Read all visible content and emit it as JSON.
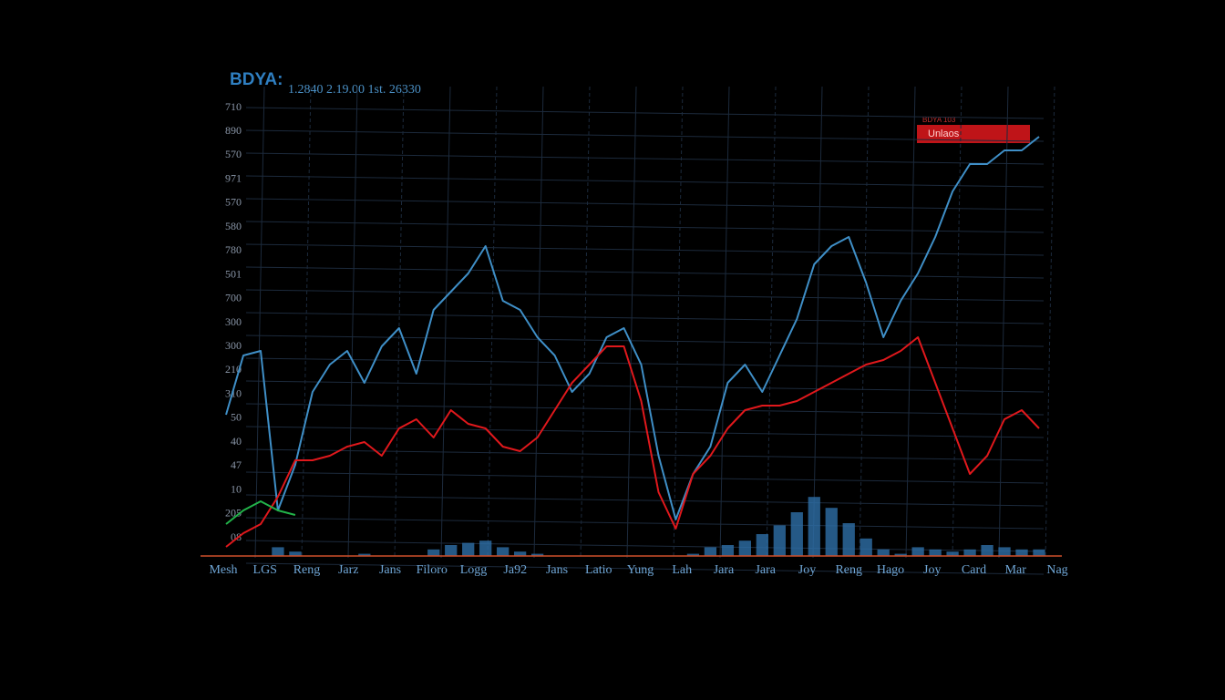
{
  "chart_data": {
    "type": "line",
    "title": "BDYA:",
    "subtitle": "1.2840 2.19.00 1st. 26330",
    "legend_caption": "BDYA 103",
    "y_axis_labels": [
      "710",
      "890",
      "570",
      "971",
      "570",
      "580",
      "780",
      "501",
      "700",
      "300",
      "300",
      "210",
      "310",
      "50",
      "40",
      "47",
      "10",
      "205",
      "08"
    ],
    "x_labels": [
      "Mesh",
      "LGS",
      "Reng",
      "Jarz",
      "Jans",
      "Filoro",
      "Logg",
      "Ja92",
      "Jans",
      "Latio",
      "Yung",
      "Lah",
      "Jara",
      "Jara",
      "Joy",
      "Reng",
      "Hago",
      "Joy",
      "Card",
      "Mar",
      "Nag"
    ],
    "ylim": [
      0,
      100
    ],
    "y2lim": [
      0,
      100
    ],
    "series": [
      {
        "color": "#3f8fc7",
        "values": [
          31,
          44,
          45,
          10,
          20,
          36,
          42,
          45,
          38,
          46,
          50,
          40,
          54,
          58,
          62,
          68,
          56,
          54,
          48,
          44,
          36,
          40,
          48,
          50,
          42,
          22,
          8,
          18,
          24,
          38,
          42,
          36,
          44,
          52,
          64,
          68,
          70,
          60,
          48,
          56,
          62,
          70,
          80,
          86,
          86,
          89,
          89,
          92
        ]
      },
      {
        "name": "Unlaos",
        "color": "#e0181c",
        "values": [
          2,
          5,
          7,
          13,
          21,
          21,
          22,
          24,
          25,
          22,
          28,
          30,
          26,
          32,
          29,
          28,
          24,
          23,
          26,
          32,
          38,
          42,
          46,
          46,
          34,
          14,
          6,
          18,
          22,
          28,
          32,
          33,
          33,
          34,
          36,
          38,
          40,
          42,
          43,
          45,
          48,
          38,
          28,
          18,
          22,
          30,
          32,
          28
        ]
      },
      {
        "color": "#22b34a",
        "values": [
          7,
          10,
          12,
          10,
          9,
          null,
          null,
          null,
          null,
          null,
          null,
          null,
          null,
          null,
          null,
          null,
          null,
          null,
          null,
          null,
          null,
          null,
          null,
          null,
          null,
          null,
          null,
          null,
          null,
          null,
          null,
          null,
          null,
          null,
          null,
          null,
          null,
          null,
          null,
          null,
          null,
          null,
          null,
          null,
          null,
          null,
          null,
          null
        ]
      }
    ],
    "volume": {
      "color": "#2e6fa8",
      "axis": "y2",
      "values": [
        0,
        0,
        0,
        8,
        4,
        0,
        0,
        0,
        2,
        0,
        0,
        0,
        6,
        10,
        12,
        14,
        8,
        4,
        2,
        0,
        0,
        0,
        0,
        0,
        0,
        0,
        0,
        2,
        8,
        10,
        14,
        20,
        28,
        40,
        54,
        44,
        30,
        16,
        6,
        2,
        8,
        6,
        4,
        6,
        10,
        8,
        6,
        6
      ]
    }
  }
}
